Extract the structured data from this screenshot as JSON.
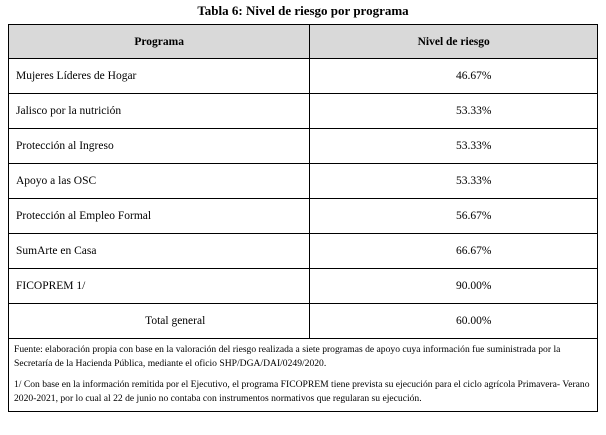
{
  "title": "Tabla 6: Nivel de riesgo por programa",
  "table": {
    "headers": [
      "Programa",
      "Nivel de riesgo"
    ],
    "rows": [
      {
        "programa": "Mujeres Líderes de Hogar",
        "nivel": "46.67%"
      },
      {
        "programa": "Jalisco por la nutrición",
        "nivel": "53.33%"
      },
      {
        "programa": "Protección al Ingreso",
        "nivel": "53.33%"
      },
      {
        "programa": "Apoyo a las OSC",
        "nivel": "53.33%"
      },
      {
        "programa": "Protección al Empleo Formal",
        "nivel": "56.67%"
      },
      {
        "programa": "SumArte en Casa",
        "nivel": "66.67%"
      },
      {
        "programa": "FICOPREM 1/",
        "nivel": "90.00%"
      }
    ],
    "total": {
      "label": "Total general",
      "nivel": "60.00%"
    }
  },
  "notes": {
    "source": "Fuente: elaboración propia con base en la valoración del riesgo realizada a siete programas de apoyo cuya información fue suministrada por la Secretaría de la Hacienda Pública, mediante el oficio SHP/DGA/DAI/0249/2020.",
    "footnote": "1/ Con base en la información remitida por el Ejecutivo, el programa FICOPREM tiene prevista su ejecución para el ciclo agrícola Primavera- Verano 2020-2021, por lo cual al 22 de junio no contaba con instrumentos normativos que regularan su ejecución."
  }
}
